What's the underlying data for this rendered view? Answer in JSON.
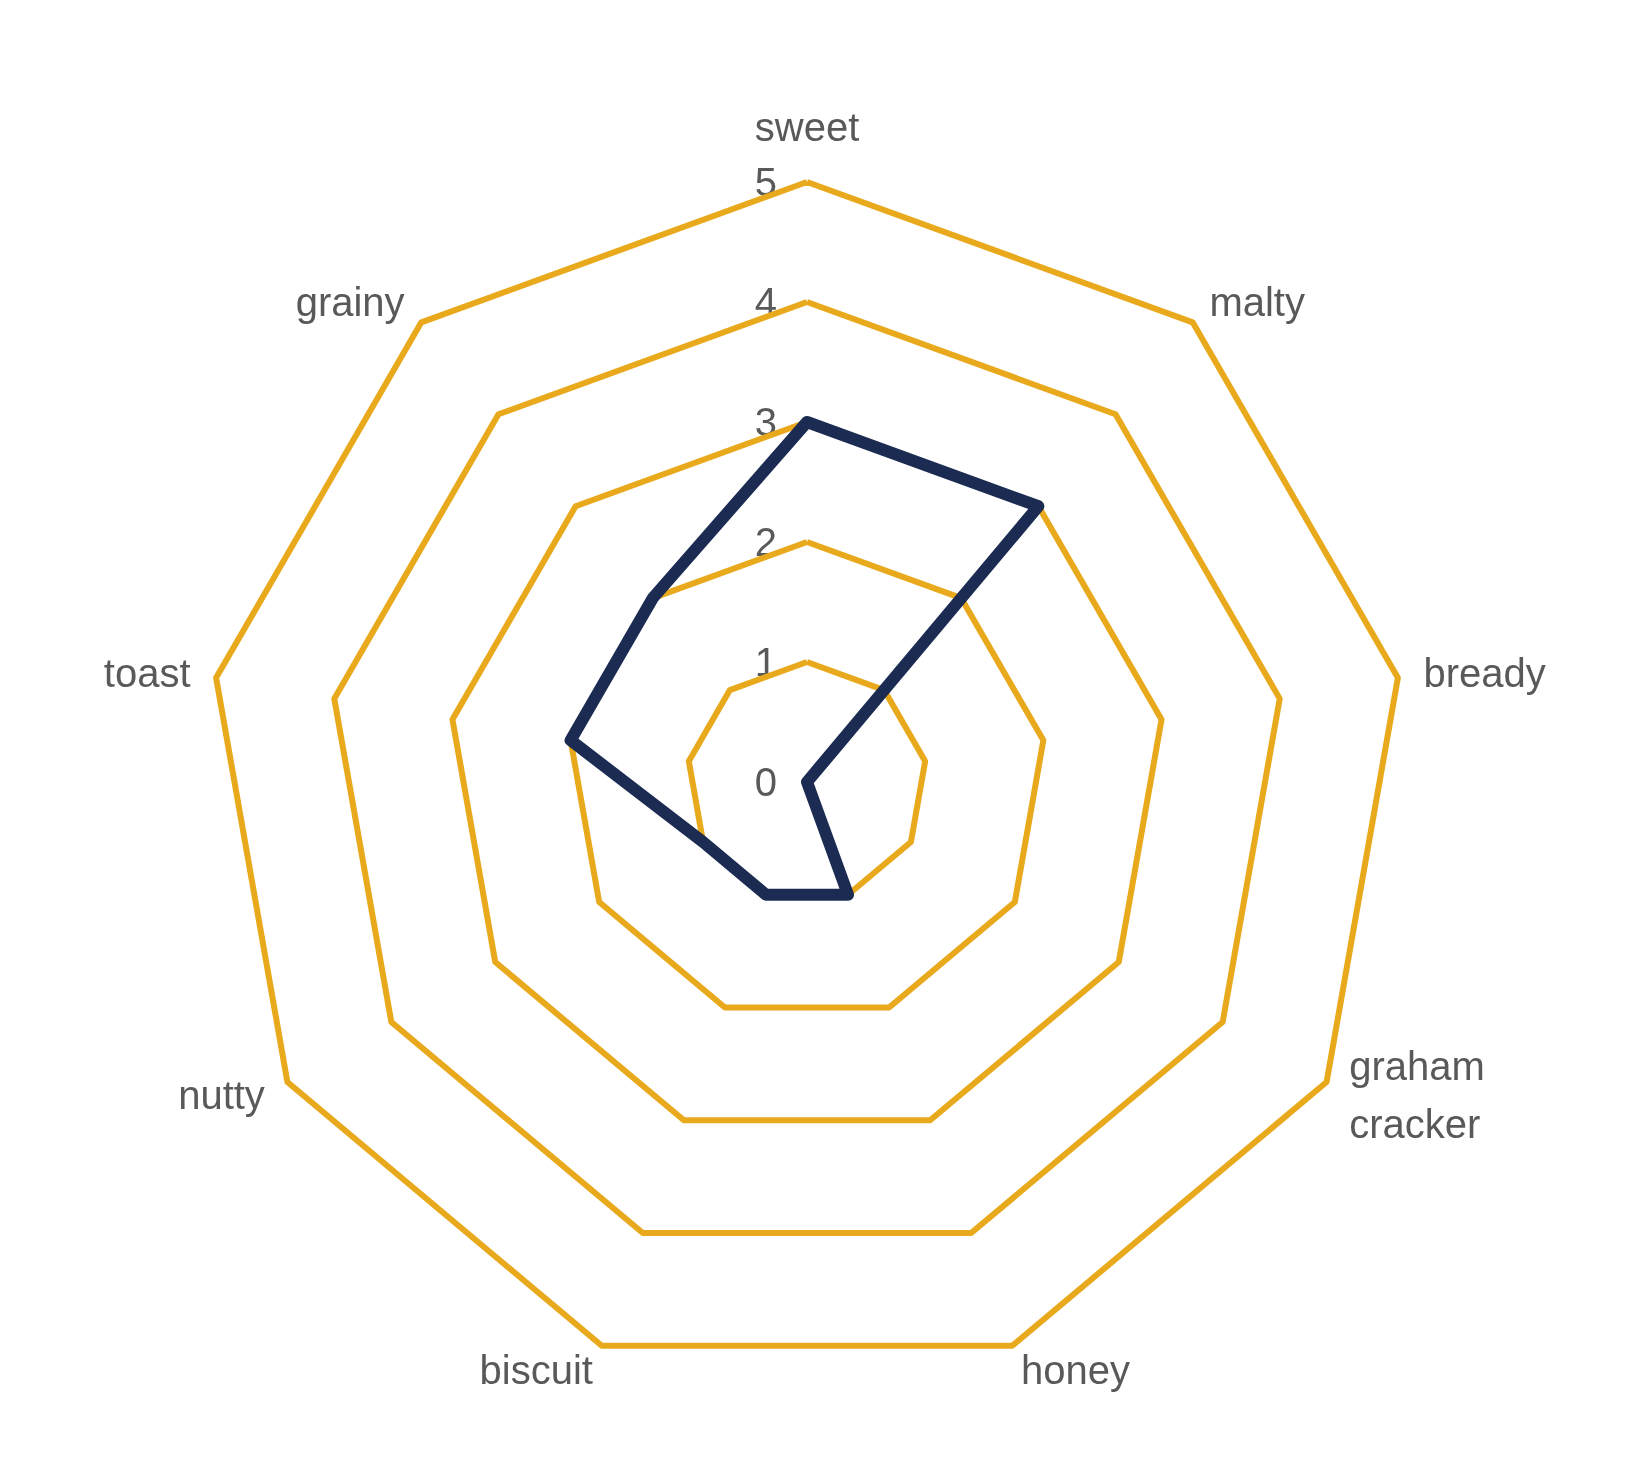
{
  "chart_data": {
    "type": "radar",
    "categories": [
      "sweet",
      "malty",
      "bready",
      "graham cracker",
      "honey",
      "biscuit",
      "nutty",
      "toast",
      "grainy"
    ],
    "series": [
      {
        "color": "#1b2b52",
        "values": [
          3,
          3,
          0,
          0,
          1,
          1,
          1,
          2,
          2
        ]
      }
    ],
    "ylim": [
      0,
      5
    ],
    "yticks": [
      0,
      1,
      2,
      3,
      4,
      5
    ],
    "grid": true,
    "marker": "none",
    "line_style": "solid"
  }
}
